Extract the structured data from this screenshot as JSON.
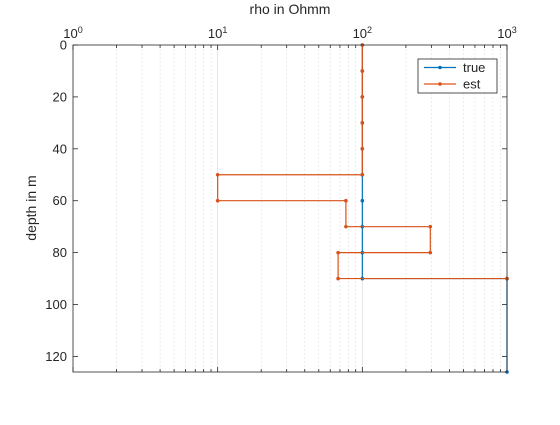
{
  "chart_data": {
    "type": "line",
    "xlabel": "rho in Ohmm",
    "ylabel": "depth in m",
    "x_scale": "log",
    "x_axis_position": "top",
    "y_direction": "reversed",
    "xlim": [
      1,
      1000
    ],
    "ylim": [
      0,
      126
    ],
    "grid": "x-major-minor-dotted",
    "legend_position": "top-right",
    "x_ticks": [
      {
        "base": "10",
        "exp": "0",
        "value": 1
      },
      {
        "base": "10",
        "exp": "1",
        "value": 10
      },
      {
        "base": "10",
        "exp": "2",
        "value": 100
      },
      {
        "base": "10",
        "exp": "3",
        "value": 1000
      }
    ],
    "y_ticks": [
      0,
      20,
      40,
      60,
      80,
      100,
      120
    ],
    "series": [
      {
        "name": "true",
        "color": "#0072BD",
        "points": [
          [
            100,
            0
          ],
          [
            100,
            10
          ],
          [
            100,
            20
          ],
          [
            100,
            30
          ],
          [
            100,
            40
          ],
          [
            100,
            50
          ],
          [
            100,
            60
          ],
          [
            100,
            70
          ],
          [
            100,
            80
          ],
          [
            100,
            90
          ],
          [
            1000,
            90
          ],
          [
            1000,
            126
          ]
        ]
      },
      {
        "name": "est",
        "color": "#D95319",
        "points": [
          [
            100,
            0
          ],
          [
            100,
            10
          ],
          [
            100,
            20
          ],
          [
            100,
            30
          ],
          [
            100,
            40
          ],
          [
            100,
            50
          ],
          [
            10,
            50
          ],
          [
            10,
            60
          ],
          [
            77,
            60
          ],
          [
            77,
            70
          ],
          [
            295,
            70
          ],
          [
            295,
            80
          ],
          [
            68,
            80
          ],
          [
            68,
            90
          ],
          [
            1000,
            90
          ]
        ]
      }
    ]
  }
}
